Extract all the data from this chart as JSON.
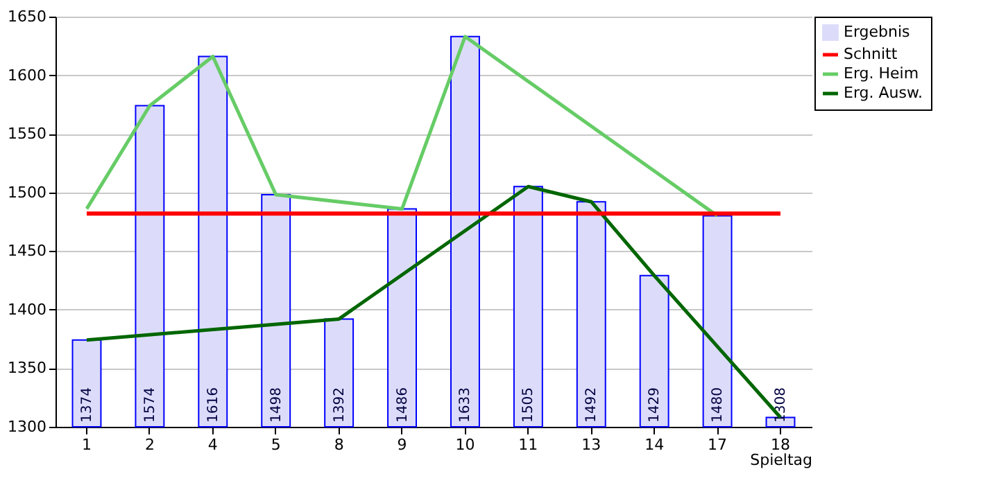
{
  "chart_data": {
    "type": "bar",
    "xlabel": "Spieltag",
    "categories": [
      "1",
      "2",
      "4",
      "5",
      "8",
      "9",
      "10",
      "11",
      "13",
      "14",
      "17",
      "18"
    ],
    "series": [
      {
        "name": "Ergebnis",
        "color": "#dcdcfa",
        "values": [
          1374,
          1574,
          1616,
          1498,
          1392,
          1486,
          1633,
          1505,
          1492,
          1429,
          1480,
          1308
        ],
        "value_labels": [
          "1374",
          "1574",
          "1616",
          "1498",
          "1392",
          "1486",
          "1633",
          "1505",
          "1492",
          "1429",
          "1480",
          "1308"
        ]
      },
      {
        "name": "Erg. Heim",
        "type": "line",
        "color": "#66cc66",
        "values": [
          1486,
          1574,
          1616,
          1498,
          null,
          1486,
          1633,
          null,
          null,
          null,
          1480,
          null
        ]
      },
      {
        "name": "Erg. Ausw.",
        "type": "line",
        "color": "#006600",
        "values": [
          1374,
          null,
          null,
          null,
          1392,
          null,
          null,
          1505,
          1492,
          1429,
          null,
          1308
        ]
      }
    ],
    "ref_lines": [
      {
        "axis": "y",
        "value": 1482,
        "label": "Schnitt",
        "color": "#ff0000"
      }
    ],
    "ylim": [
      1300,
      1650
    ],
    "yticks": [
      1300,
      1350,
      1400,
      1450,
      1500,
      1550,
      1600,
      1650
    ],
    "grid": "y",
    "legend": "right"
  }
}
